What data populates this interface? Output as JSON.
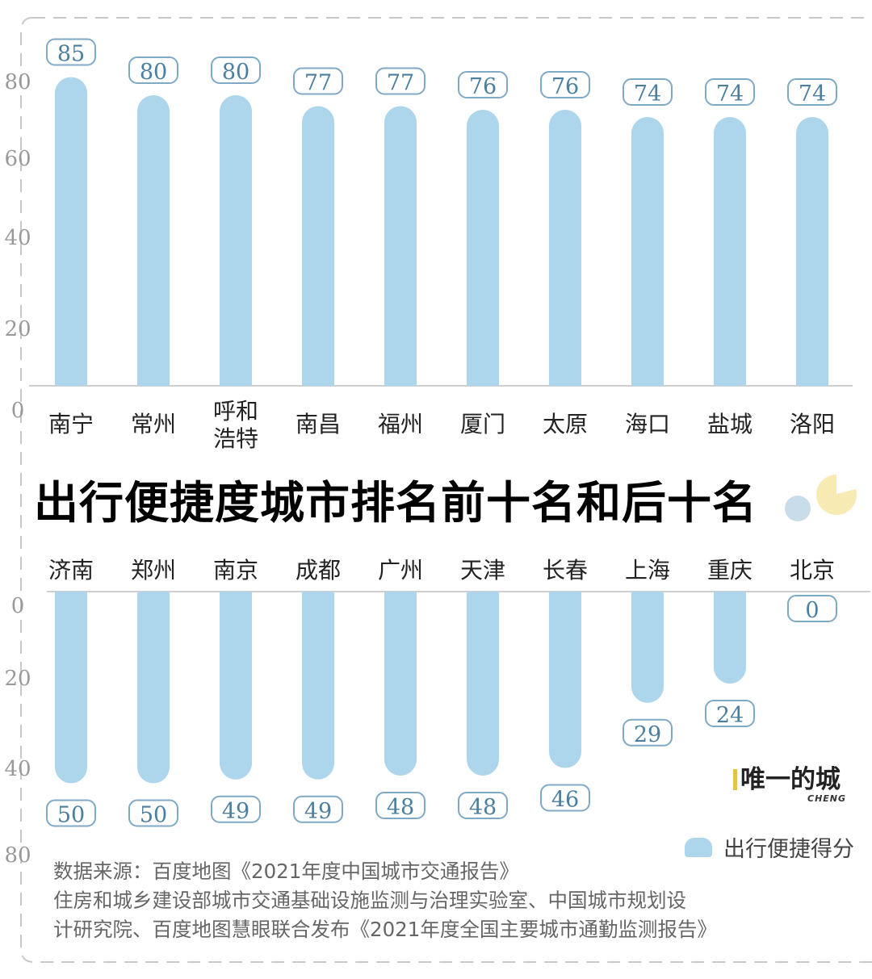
{
  "chart_data": [
    {
      "type": "bar",
      "categories": [
        "南宁",
        "常州",
        "呼和浩特",
        "南昌",
        "福州",
        "厦门",
        "太原",
        "海口",
        "盐城",
        "洛阳"
      ],
      "category_lines": [
        [
          "南宁"
        ],
        [
          "常州"
        ],
        [
          "呼和",
          "浩特"
        ],
        [
          "南昌"
        ],
        [
          "福州"
        ],
        [
          "厦门"
        ],
        [
          "太原"
        ],
        [
          "海口"
        ],
        [
          "盐城"
        ],
        [
          "洛阳"
        ]
      ],
      "values": [
        85,
        80,
        80,
        77,
        77,
        76,
        76,
        74,
        74,
        74
      ],
      "yticks": [
        "0",
        "20",
        "40",
        "60",
        "80"
      ],
      "ylim": [
        0,
        85
      ]
    },
    {
      "type": "bar",
      "categories": [
        "济南",
        "郑州",
        "南京",
        "成都",
        "广州",
        "天津",
        "长春",
        "上海",
        "重庆",
        "北京"
      ],
      "category_lines": [
        [
          "济南"
        ],
        [
          "郑州"
        ],
        [
          "南京"
        ],
        [
          "成都"
        ],
        [
          "广州"
        ],
        [
          "天津"
        ],
        [
          "长春"
        ],
        [
          "上海"
        ],
        [
          "重庆"
        ],
        [
          "北京"
        ]
      ],
      "values": [
        50,
        50,
        49,
        49,
        48,
        48,
        46,
        29,
        24,
        0
      ],
      "yticks": [
        "0",
        "20",
        "40",
        "80"
      ],
      "ylim": [
        0,
        80
      ],
      "inverted": true
    }
  ],
  "title": "出行便捷度城市排名前十名和后十名",
  "legend": {
    "label": "出行便捷得分"
  },
  "brand": {
    "name": "唯一的城",
    "sub": "CHENG"
  },
  "source_lines": [
    "数据来源：百度地图《2021年度中国城市交通报告》",
    "住房和城乡建设部城市交通基础设施监测与治理实验室、中国城市规划设",
    "计研究院、百度地图慧眼联合发布《2021年度全国主要城市通勤监测报告》"
  ],
  "colors": {
    "bar": "#add5ec",
    "label_border": "#7fa9c4",
    "label_text": "#4a7fa0",
    "axis_text": "#999999",
    "category_text": "#222222",
    "deco_yellow": "#f7eab2",
    "deco_blue": "#c9dcea"
  }
}
